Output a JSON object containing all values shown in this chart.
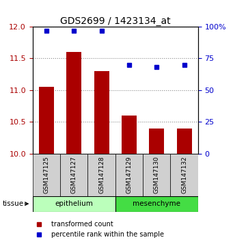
{
  "title": "GDS2699 / 1423134_at",
  "samples": [
    "GSM147125",
    "GSM147127",
    "GSM147128",
    "GSM147129",
    "GSM147130",
    "GSM147132"
  ],
  "bar_values": [
    11.05,
    11.6,
    11.3,
    10.6,
    10.4,
    10.4
  ],
  "percentile_values": [
    97,
    97,
    97,
    70,
    68,
    70
  ],
  "bar_color": "#AA0000",
  "dot_color": "#0000CC",
  "ylim_left": [
    10,
    12
  ],
  "ylim_right": [
    0,
    100
  ],
  "yticks_left": [
    10,
    10.5,
    11,
    11.5,
    12
  ],
  "yticks_right": [
    0,
    25,
    50,
    75,
    100
  ],
  "epi_color": "#bbffbb",
  "mes_color": "#44dd44",
  "sample_box_color": "#d0d0d0",
  "background_color": "#ffffff",
  "bar_width": 0.55,
  "grid_color": "#888888",
  "tissue_label": "tissue",
  "legend_bar_label": "transformed count",
  "legend_dot_label": "percentile rank within the sample"
}
